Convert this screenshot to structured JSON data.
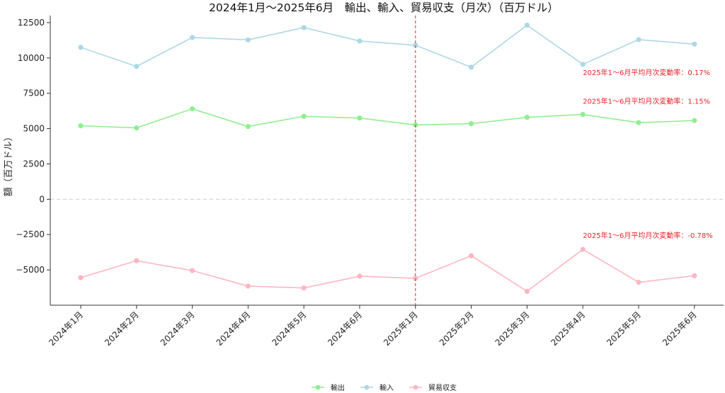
{
  "chart_data": {
    "type": "line",
    "title": "2024年1月～2025年6月　輸出、輸入、貿易収支（月次）（百万ドル）",
    "xlabel": "",
    "ylabel": "額（百万ドル）",
    "categories": [
      "2024年1月",
      "2024年2月",
      "2024年3月",
      "2024年4月",
      "2024年5月",
      "2024年6月",
      "2025年1月",
      "2025年2月",
      "2025年3月",
      "2025年4月",
      "2025年5月",
      "2025年6月"
    ],
    "y_ticks": [
      "12500",
      "10000",
      "7500",
      "5000",
      "2500",
      "0",
      "−2500",
      "−5000"
    ],
    "ylim": [
      -7500,
      13000
    ],
    "series": [
      {
        "name": "輸出",
        "color": "#90ee90",
        "values": [
          5200,
          5050,
          6400,
          5150,
          5870,
          5750,
          5260,
          5350,
          5800,
          6000,
          5420,
          5570
        ]
      },
      {
        "name": "輸入",
        "color": "#add8e6",
        "values": [
          10750,
          9400,
          11450,
          11280,
          12150,
          11200,
          10900,
          9350,
          12320,
          9550,
          11300,
          10980
        ]
      },
      {
        "name": "貿易収支",
        "color": "#ffb6c1",
        "values": [
          -5550,
          -4350,
          -5050,
          -6150,
          -6280,
          -5450,
          -5600,
          -4000,
          -6520,
          -3550,
          -5880,
          -5410
        ]
      }
    ],
    "annotations": [
      {
        "text": "2025年1～6月平均月次変動率：0.17%",
        "x_category": "2025年4月",
        "y": 8800
      },
      {
        "text": "2025年1～6月平均月次変動率：1.15%",
        "x_category": "2025年4月",
        "y": 6750
      },
      {
        "text": "2025年1～6月平均月次変動率：-0.78%",
        "x_category": "2025年4月",
        "y": -2750
      }
    ],
    "reference_line": {
      "x_category": "2025年1月",
      "color": "#e8242a",
      "style": "dashed"
    },
    "zero_line": {
      "y": 0,
      "style": "dashed",
      "color": "#cccccc"
    },
    "grid": false,
    "legend_position": "bottom-center"
  }
}
